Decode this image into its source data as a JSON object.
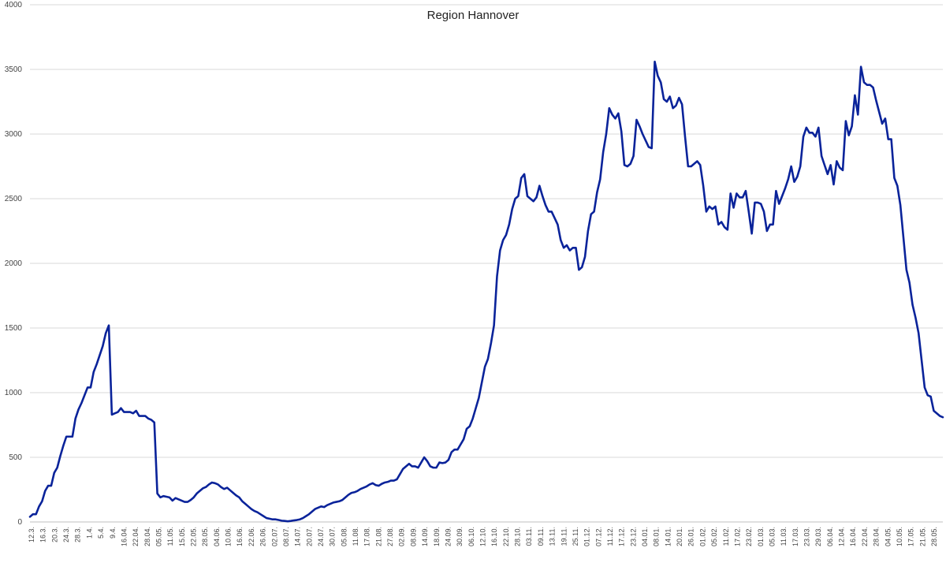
{
  "chart_data": {
    "type": "line",
    "title": "Region Hannover",
    "xlabel": "",
    "ylabel": "",
    "ylim": [
      0,
      4000
    ],
    "y_ticks": [
      0,
      500,
      1000,
      1500,
      2000,
      2500,
      3000,
      3500,
      4000
    ],
    "grid": true,
    "legend": "none",
    "x_tick_labels": [
      "12.3.",
      "16.3.",
      "20.3.",
      "24.3.",
      "28.3.",
      "1.4.",
      "5.4.",
      "9.4.",
      "16.04.",
      "22.04.",
      "28.04.",
      "05.05.",
      "11.05.",
      "15.05.",
      "22.05.",
      "28.05.",
      "04.06.",
      "10.06.",
      "16.06.",
      "22.06.",
      "26.06.",
      "02.07.",
      "08.07.",
      "14.07.",
      "20.07.",
      "24.07.",
      "30.07.",
      "05.08.",
      "11.08.",
      "17.08.",
      "21.08.",
      "27.08.",
      "02.09.",
      "08.09.",
      "14.09.",
      "18.09.",
      "24.09.",
      "30.09.",
      "06.10.",
      "12.10.",
      "16.10.",
      "22.10.",
      "28.10.",
      "03.11.",
      "09.11.",
      "13.11.",
      "19.11.",
      "25.11.",
      "01.12.",
      "07.12.",
      "11.12.",
      "17.12.",
      "23.12.",
      "04.01.",
      "08.01.",
      "14.01.",
      "20.01.",
      "26.01.",
      "01.02.",
      "05.02.",
      "11.02.",
      "17.02.",
      "23.02.",
      "01.03.",
      "05.03.",
      "11.03.",
      "17.03.",
      "23.03.",
      "29.03.",
      "06.04.",
      "12.04.",
      "16.04.",
      "22.04.",
      "28.04.",
      "04.05.",
      "10.05.",
      "17.05.",
      "21.05.",
      "28.05."
    ],
    "series": [
      {
        "color": "#0a239a",
        "points": [
          [
            0,
            40
          ],
          [
            1,
            60
          ],
          [
            2,
            60
          ],
          [
            3,
            120
          ],
          [
            4,
            160
          ],
          [
            5,
            240
          ],
          [
            6,
            280
          ],
          [
            7,
            280
          ],
          [
            8,
            380
          ],
          [
            9,
            420
          ],
          [
            10,
            510
          ],
          [
            11,
            590
          ],
          [
            12,
            660
          ],
          [
            13,
            660
          ],
          [
            14,
            660
          ],
          [
            15,
            800
          ],
          [
            16,
            870
          ],
          [
            17,
            920
          ],
          [
            18,
            980
          ],
          [
            19,
            1040
          ],
          [
            20,
            1040
          ],
          [
            21,
            1160
          ],
          [
            22,
            1220
          ],
          [
            23,
            1290
          ],
          [
            24,
            1360
          ],
          [
            25,
            1460
          ],
          [
            26,
            1520
          ],
          [
            27,
            830
          ],
          [
            28,
            840
          ],
          [
            29,
            850
          ],
          [
            30,
            880
          ],
          [
            31,
            850
          ],
          [
            32,
            850
          ],
          [
            33,
            850
          ],
          [
            34,
            840
          ],
          [
            35,
            860
          ],
          [
            36,
            820
          ],
          [
            37,
            820
          ],
          [
            38,
            820
          ],
          [
            39,
            800
          ],
          [
            40,
            790
          ],
          [
            41,
            770
          ],
          [
            42,
            220
          ],
          [
            43,
            190
          ],
          [
            44,
            200
          ],
          [
            45,
            195
          ],
          [
            46,
            190
          ],
          [
            47,
            165
          ],
          [
            48,
            185
          ],
          [
            49,
            175
          ],
          [
            50,
            165
          ],
          [
            51,
            155
          ],
          [
            52,
            155
          ],
          [
            53,
            170
          ],
          [
            54,
            190
          ],
          [
            55,
            220
          ],
          [
            56,
            240
          ],
          [
            57,
            260
          ],
          [
            58,
            270
          ],
          [
            59,
            290
          ],
          [
            60,
            305
          ],
          [
            61,
            300
          ],
          [
            62,
            290
          ],
          [
            63,
            270
          ],
          [
            64,
            255
          ],
          [
            65,
            265
          ],
          [
            66,
            245
          ],
          [
            67,
            225
          ],
          [
            68,
            205
          ],
          [
            69,
            190
          ],
          [
            70,
            160
          ],
          [
            71,
            140
          ],
          [
            72,
            120
          ],
          [
            73,
            100
          ],
          [
            74,
            85
          ],
          [
            75,
            75
          ],
          [
            76,
            60
          ],
          [
            77,
            45
          ],
          [
            78,
            30
          ],
          [
            79,
            25
          ],
          [
            80,
            20
          ],
          [
            81,
            20
          ],
          [
            82,
            15
          ],
          [
            83,
            10
          ],
          [
            84,
            8
          ],
          [
            85,
            5
          ],
          [
            86,
            8
          ],
          [
            87,
            12
          ],
          [
            88,
            15
          ],
          [
            89,
            20
          ],
          [
            90,
            30
          ],
          [
            91,
            45
          ],
          [
            92,
            60
          ],
          [
            93,
            80
          ],
          [
            94,
            100
          ],
          [
            95,
            110
          ],
          [
            96,
            120
          ],
          [
            97,
            115
          ],
          [
            98,
            130
          ],
          [
            99,
            140
          ],
          [
            100,
            150
          ],
          [
            101,
            155
          ],
          [
            102,
            160
          ],
          [
            103,
            170
          ],
          [
            104,
            190
          ],
          [
            105,
            210
          ],
          [
            106,
            225
          ],
          [
            107,
            230
          ],
          [
            108,
            240
          ],
          [
            109,
            255
          ],
          [
            110,
            265
          ],
          [
            111,
            275
          ],
          [
            112,
            290
          ],
          [
            113,
            300
          ],
          [
            114,
            285
          ],
          [
            115,
            280
          ],
          [
            116,
            295
          ],
          [
            117,
            305
          ],
          [
            118,
            310
          ],
          [
            119,
            320
          ],
          [
            120,
            320
          ],
          [
            121,
            330
          ],
          [
            122,
            370
          ],
          [
            123,
            410
          ],
          [
            124,
            430
          ],
          [
            125,
            450
          ],
          [
            126,
            430
          ],
          [
            127,
            430
          ],
          [
            128,
            420
          ],
          [
            129,
            460
          ],
          [
            130,
            500
          ],
          [
            131,
            470
          ],
          [
            132,
            430
          ],
          [
            133,
            420
          ],
          [
            134,
            420
          ],
          [
            135,
            460
          ],
          [
            136,
            455
          ],
          [
            137,
            460
          ],
          [
            138,
            480
          ],
          [
            139,
            540
          ],
          [
            140,
            560
          ],
          [
            141,
            560
          ],
          [
            142,
            600
          ],
          [
            143,
            640
          ],
          [
            144,
            720
          ],
          [
            145,
            740
          ],
          [
            146,
            800
          ],
          [
            147,
            880
          ],
          [
            148,
            960
          ],
          [
            149,
            1080
          ],
          [
            150,
            1200
          ],
          [
            151,
            1260
          ],
          [
            152,
            1380
          ],
          [
            153,
            1520
          ],
          [
            154,
            1900
          ],
          [
            155,
            2100
          ],
          [
            156,
            2180
          ],
          [
            157,
            2220
          ],
          [
            158,
            2300
          ],
          [
            159,
            2420
          ],
          [
            160,
            2500
          ],
          [
            161,
            2520
          ],
          [
            162,
            2660
          ],
          [
            163,
            2690
          ],
          [
            164,
            2520
          ],
          [
            165,
            2500
          ],
          [
            166,
            2480
          ],
          [
            167,
            2510
          ],
          [
            168,
            2600
          ],
          [
            169,
            2520
          ],
          [
            170,
            2450
          ],
          [
            171,
            2400
          ],
          [
            172,
            2400
          ],
          [
            173,
            2350
          ],
          [
            174,
            2300
          ],
          [
            175,
            2180
          ],
          [
            176,
            2120
          ],
          [
            177,
            2140
          ],
          [
            178,
            2100
          ],
          [
            179,
            2120
          ],
          [
            180,
            2120
          ],
          [
            181,
            1950
          ],
          [
            182,
            1970
          ],
          [
            183,
            2050
          ],
          [
            184,
            2250
          ],
          [
            185,
            2380
          ],
          [
            186,
            2400
          ],
          [
            187,
            2550
          ],
          [
            188,
            2650
          ],
          [
            189,
            2860
          ],
          [
            190,
            3000
          ],
          [
            191,
            3200
          ],
          [
            192,
            3150
          ],
          [
            193,
            3120
          ],
          [
            194,
            3160
          ],
          [
            195,
            3020
          ],
          [
            196,
            2760
          ],
          [
            197,
            2750
          ],
          [
            198,
            2770
          ],
          [
            199,
            2830
          ],
          [
            200,
            3110
          ],
          [
            201,
            3060
          ],
          [
            202,
            3000
          ],
          [
            203,
            2950
          ],
          [
            204,
            2900
          ],
          [
            205,
            2890
          ],
          [
            206,
            3560
          ],
          [
            207,
            3450
          ],
          [
            208,
            3400
          ],
          [
            209,
            3270
          ],
          [
            210,
            3250
          ],
          [
            211,
            3290
          ],
          [
            212,
            3200
          ],
          [
            213,
            3220
          ],
          [
            214,
            3280
          ],
          [
            215,
            3230
          ],
          [
            216,
            2980
          ],
          [
            217,
            2750
          ],
          [
            218,
            2750
          ],
          [
            219,
            2770
          ],
          [
            220,
            2790
          ],
          [
            221,
            2760
          ],
          [
            222,
            2600
          ],
          [
            223,
            2400
          ],
          [
            224,
            2440
          ],
          [
            225,
            2420
          ],
          [
            226,
            2440
          ],
          [
            227,
            2300
          ],
          [
            228,
            2320
          ],
          [
            229,
            2280
          ],
          [
            230,
            2260
          ],
          [
            231,
            2540
          ],
          [
            232,
            2430
          ],
          [
            233,
            2540
          ],
          [
            234,
            2510
          ],
          [
            235,
            2510
          ],
          [
            236,
            2560
          ],
          [
            237,
            2400
          ],
          [
            238,
            2230
          ],
          [
            239,
            2470
          ],
          [
            240,
            2470
          ],
          [
            241,
            2460
          ],
          [
            242,
            2400
          ],
          [
            243,
            2250
          ],
          [
            244,
            2300
          ],
          [
            245,
            2300
          ],
          [
            246,
            2560
          ],
          [
            247,
            2460
          ],
          [
            248,
            2520
          ],
          [
            249,
            2580
          ],
          [
            250,
            2650
          ],
          [
            251,
            2750
          ],
          [
            252,
            2630
          ],
          [
            253,
            2670
          ],
          [
            254,
            2750
          ],
          [
            255,
            2980
          ],
          [
            256,
            3050
          ],
          [
            257,
            3010
          ],
          [
            258,
            3010
          ],
          [
            259,
            2980
          ],
          [
            260,
            3050
          ],
          [
            261,
            2830
          ],
          [
            262,
            2760
          ],
          [
            263,
            2690
          ],
          [
            264,
            2760
          ],
          [
            265,
            2610
          ],
          [
            266,
            2790
          ],
          [
            267,
            2740
          ],
          [
            268,
            2720
          ],
          [
            269,
            3100
          ],
          [
            270,
            2990
          ],
          [
            271,
            3060
          ],
          [
            272,
            3300
          ],
          [
            273,
            3150
          ],
          [
            274,
            3520
          ],
          [
            275,
            3400
          ],
          [
            276,
            3380
          ],
          [
            277,
            3380
          ],
          [
            278,
            3360
          ],
          [
            279,
            3260
          ],
          [
            280,
            3170
          ],
          [
            281,
            3080
          ],
          [
            282,
            3120
          ],
          [
            283,
            2960
          ],
          [
            284,
            2960
          ],
          [
            285,
            2660
          ],
          [
            286,
            2600
          ],
          [
            287,
            2450
          ],
          [
            288,
            2200
          ],
          [
            289,
            1950
          ],
          [
            290,
            1850
          ],
          [
            291,
            1680
          ],
          [
            292,
            1580
          ],
          [
            293,
            1460
          ],
          [
            294,
            1250
          ],
          [
            295,
            1040
          ],
          [
            296,
            980
          ],
          [
            297,
            970
          ],
          [
            298,
            860
          ],
          [
            299,
            840
          ],
          [
            300,
            820
          ],
          [
            301,
            810
          ]
        ]
      }
    ]
  }
}
